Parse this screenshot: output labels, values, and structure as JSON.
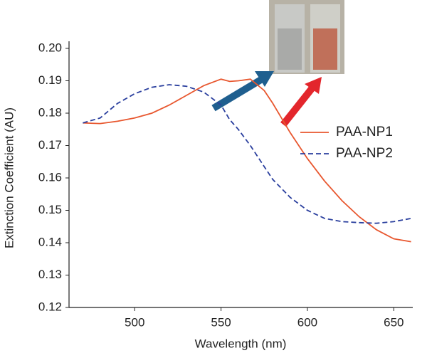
{
  "chart_data": {
    "type": "line",
    "xlabel": "Wavelength (nm)",
    "ylabel": "Extinction Coefficient (AU)",
    "x": [
      470,
      480,
      490,
      500,
      510,
      520,
      530,
      540,
      550,
      555,
      560,
      567,
      575,
      580,
      590,
      600,
      610,
      620,
      630,
      640,
      650,
      660
    ],
    "series": [
      {
        "name": "PAA-NP1",
        "color": "#e8572f",
        "dash": false,
        "values": [
          0.177,
          0.1768,
          0.1775,
          0.1785,
          0.18,
          0.1825,
          0.1855,
          0.1885,
          0.1905,
          0.1898,
          0.19,
          0.1905,
          0.187,
          0.183,
          0.174,
          0.166,
          0.159,
          0.153,
          0.148,
          0.144,
          0.1412,
          0.1403
        ]
      },
      {
        "name": "PAA-NP2",
        "color": "#2a3f9e",
        "dash": true,
        "values": [
          0.177,
          0.1785,
          0.183,
          0.186,
          0.188,
          0.1888,
          0.1883,
          0.1865,
          0.1825,
          0.178,
          0.175,
          0.17,
          0.1635,
          0.1595,
          0.154,
          0.15,
          0.1475,
          0.1465,
          0.1462,
          0.146,
          0.1465,
          0.1475
        ]
      }
    ],
    "xlim": [
      462,
      661
    ],
    "ylim": [
      0.12,
      0.2
    ],
    "xticks": [
      500,
      550,
      600,
      650
    ],
    "yticks": [
      0.12,
      0.13,
      0.14,
      0.15,
      0.16,
      0.17,
      0.18,
      0.19,
      {
        "value": 0.2,
        "label": "0.20"
      }
    ]
  }
}
